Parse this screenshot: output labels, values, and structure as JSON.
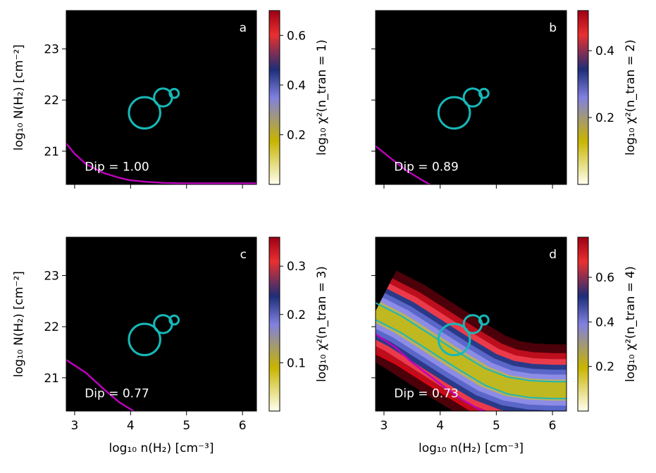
{
  "chart_data": [
    {
      "panel": "a",
      "type": "heatmap",
      "colorbar_label": "log₁₀ χ²(n_tran = 1)",
      "colorbar_ticks": [
        0.2,
        0.4,
        0.6
      ],
      "colorbar_range": [
        0.0,
        0.7
      ],
      "dip_label": "Dip = 1.00",
      "curve_x": [
        2.85,
        3.0,
        3.2,
        3.5,
        3.8,
        4.0,
        4.3,
        4.6,
        5.0,
        5.5,
        6.0,
        6.25
      ],
      "curve_y": [
        21.15,
        20.95,
        20.75,
        20.58,
        20.48,
        20.43,
        20.4,
        20.38,
        20.37,
        20.37,
        20.37,
        20.37
      ],
      "filled": false
    },
    {
      "panel": "b",
      "type": "heatmap",
      "colorbar_label": "log₁₀ χ²(n_tran = 2)",
      "colorbar_ticks": [
        0.2,
        0.4
      ],
      "colorbar_range": [
        0.0,
        0.52
      ],
      "dip_label": "Dip = 0.89",
      "curve_x": [
        2.85,
        3.1,
        3.4,
        3.7,
        3.85
      ],
      "curve_y": [
        21.1,
        20.88,
        20.62,
        20.42,
        20.33
      ],
      "filled": false
    },
    {
      "panel": "c",
      "type": "heatmap",
      "colorbar_label": "log₁₀ χ²(n_tran = 3)",
      "colorbar_ticks": [
        0.1,
        0.2,
        0.3
      ],
      "colorbar_range": [
        0.0,
        0.36
      ],
      "dip_label": "Dip = 0.77",
      "curve_x": [
        2.85,
        3.2,
        3.5,
        3.8,
        4.1
      ],
      "curve_y": [
        21.35,
        21.1,
        20.8,
        20.52,
        20.32
      ],
      "filled": false
    },
    {
      "panel": "d",
      "type": "heatmap",
      "colorbar_label": "log₁₀ χ²(n_tran = 4)",
      "colorbar_ticks": [
        0.2,
        0.4,
        0.6
      ],
      "colorbar_range": [
        0.0,
        0.78
      ],
      "dip_label": "Dip = 0.73",
      "curve_x": [
        2.85,
        3.2,
        3.5,
        3.8,
        4.1,
        4.4,
        4.7,
        4.85
      ],
      "curve_y": [
        21.85,
        21.6,
        21.3,
        21.05,
        20.8,
        20.57,
        20.38,
        20.33
      ],
      "valley_x": [
        2.85,
        3.3,
        3.8,
        4.3,
        4.8,
        5.2,
        5.6,
        6.0,
        6.25
      ],
      "valley_y": [
        22.3,
        22.05,
        21.7,
        21.35,
        21.02,
        20.85,
        20.78,
        20.76,
        20.76
      ],
      "filled": true
    }
  ],
  "axes": {
    "xlim": [
      2.85,
      6.25
    ],
    "ylim": [
      20.35,
      23.75
    ],
    "xticks": [
      3,
      4,
      5,
      6
    ],
    "yticks": [
      21,
      22,
      23
    ],
    "xlabel": "log₁₀ n(H₂) [cm⁻³]",
    "ylabel": "log₁₀ N(H₂) [cm⁻²]"
  },
  "circles": [
    {
      "x": 4.25,
      "y": 21.75,
      "r": 0.28
    },
    {
      "x": 4.58,
      "y": 22.05,
      "r": 0.16
    },
    {
      "x": 4.78,
      "y": 22.13,
      "r": 0.08
    }
  ],
  "panel_labels": [
    "a",
    "b",
    "c",
    "d"
  ],
  "colors": {
    "background": "#000000",
    "curve": "#c000c0",
    "circle": "#17b8b8",
    "colormap": [
      "#fffff0",
      "#c8b400",
      "#8080e0",
      "#1e2e78",
      "#e83030",
      "#9e0014"
    ]
  }
}
